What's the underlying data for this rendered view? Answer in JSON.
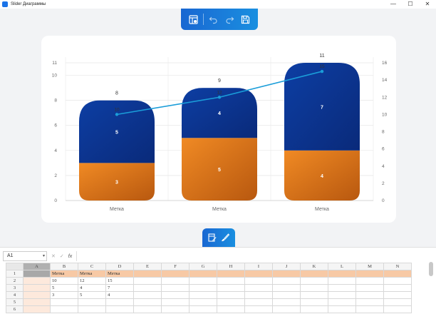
{
  "window": {
    "title": "Slider Диаграммы",
    "controls": [
      "—",
      "☐",
      "✕"
    ]
  },
  "toolbar_top": {
    "icons": [
      "chart-settings-icon",
      "undo-icon",
      "redo-icon",
      "save-icon"
    ]
  },
  "toolbar_mid": {
    "icons": [
      "edit-data-icon",
      "brush-icon"
    ]
  },
  "chart_data": {
    "type": "bar",
    "categories": [
      "Метка",
      "Метка",
      "Метка"
    ],
    "series": [
      {
        "values": [
          3,
          5,
          4
        ],
        "color": "#e8801f"
      },
      {
        "values": [
          5,
          4,
          7
        ],
        "color": "#0d3ea3"
      }
    ],
    "line": {
      "values": [
        10,
        12,
        15
      ],
      "color": "#1a9dd9",
      "axis": "right"
    },
    "totals": [
      8,
      9,
      11
    ],
    "left_axis": {
      "min": 0,
      "max": 11,
      "ticks": [
        0,
        2,
        4,
        6,
        8,
        10,
        11
      ]
    },
    "right_axis": {
      "min": 0,
      "max": 16,
      "ticks": [
        0,
        2,
        4,
        6,
        8,
        10,
        12,
        14,
        16
      ]
    },
    "grid": true,
    "legend": "none"
  },
  "sheet": {
    "cell_ref": "A1",
    "fx_label": "fx",
    "cancel_symbol": "✕",
    "confirm_symbol": "✓",
    "columns": [
      "A",
      "B",
      "C",
      "D",
      "E",
      "F",
      "G",
      "H",
      "I",
      "J",
      "K",
      "L",
      "M",
      "N"
    ],
    "rows": [
      {
        "num": "1",
        "cells": [
          "",
          "Метка",
          "Метка",
          "Метка",
          "",
          "",
          "",
          "",
          "",
          "",
          "",
          "",
          "",
          ""
        ]
      },
      {
        "num": "2",
        "cells": [
          "",
          "10",
          "12",
          "15",
          "",
          "",
          "",
          "",
          "",
          "",
          "",
          "",
          "",
          ""
        ]
      },
      {
        "num": "3",
        "cells": [
          "",
          "5",
          "4",
          "7",
          "",
          "",
          "",
          "",
          "",
          "",
          "",
          "",
          "",
          ""
        ]
      },
      {
        "num": "4",
        "cells": [
          "",
          "3",
          "5",
          "4",
          "",
          "",
          "",
          "",
          "",
          "",
          "",
          "",
          "",
          ""
        ]
      },
      {
        "num": "5",
        "cells": [
          "",
          "",
          "",
          "",
          "",
          "",
          "",
          "",
          "",
          "",
          "",
          "",
          "",
          ""
        ]
      },
      {
        "num": "6",
        "cells": [
          "",
          "",
          "",
          "",
          "",
          "",
          "",
          "",
          "",
          "",
          "",
          "",
          "",
          ""
        ]
      }
    ]
  }
}
